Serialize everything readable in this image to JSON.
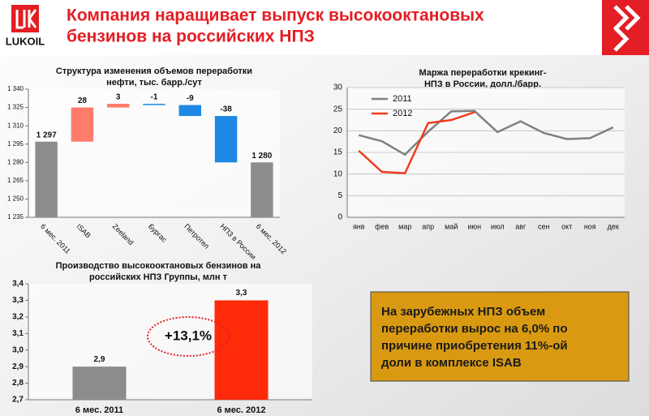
{
  "header": {
    "title": [
      "Компания наращивает выпуск высокооктановых",
      "бензинов на российских НПЗ"
    ],
    "logo": "LUKOIL"
  },
  "note": [
    "На зарубежных НПЗ объем",
    "переработки вырос на 6,0% по",
    "причине приобретения 11%-ой",
    "доли в комплексе ISAB"
  ],
  "chart_data": [
    {
      "type": "waterfall",
      "title": [
        "Структура изменения объемов переработки",
        "нефти, тыс. барр./сут"
      ],
      "categories": [
        "6 мес. 2011",
        "ISAB",
        "Zeeland",
        "Бургас",
        "Петротел",
        "НПЗ в России",
        "6 мес. 2012"
      ],
      "values": [
        1297,
        28,
        3,
        -1,
        -9,
        -38,
        1280
      ],
      "value_labels": [
        "1 297",
        "28",
        "3",
        "-1",
        "-9",
        "-38",
        "1 280"
      ],
      "total_color": "#8c8c8c",
      "increase_color": "#ff7b6b",
      "decrease_color": "#1e88e5",
      "ylim": [
        1235,
        1340
      ],
      "yticks": [
        {
          "value": 1235,
          "label": "1 235"
        },
        {
          "value": 1250,
          "label": "1 250"
        },
        {
          "value": 1265,
          "label": "1 265"
        },
        {
          "value": 1280,
          "label": "1 280"
        },
        {
          "value": 1295,
          "label": "1 295"
        },
        {
          "value": 1310,
          "label": "1 310"
        },
        {
          "value": 1325,
          "label": "1 325"
        },
        {
          "value": 1340,
          "label": "1 340"
        }
      ]
    },
    {
      "type": "line",
      "title": [
        "Маржа переработки крекинг-",
        "НПЗ в России, долл./барр."
      ],
      "categories": [
        "янв",
        "фев",
        "мар",
        "апр",
        "май",
        "июн",
        "июл",
        "авг",
        "сен",
        "окт",
        "ноя",
        "дек"
      ],
      "series": [
        {
          "name": "2011",
          "color": "#808080",
          "values": [
            19,
            17.6,
            14.5,
            19.8,
            24.5,
            24.6,
            19.7,
            22.2,
            19.5,
            18.1,
            18.3,
            20.8
          ]
        },
        {
          "name": "2012",
          "color": "#f03c1e",
          "values": [
            15.4,
            10.5,
            10.2,
            21.8,
            22.5,
            24.3,
            null,
            null,
            null,
            null,
            null,
            null
          ]
        }
      ],
      "ylim": [
        0,
        30
      ],
      "yticks": [
        0,
        5,
        10,
        15,
        20,
        25,
        30
      ],
      "legend": "top-left"
    },
    {
      "type": "bar",
      "title": [
        "Производство высокооктановых бензинов на",
        "российских НПЗ Группы, млн т"
      ],
      "categories": [
        "6 мес. 2011",
        "6 мес. 2012"
      ],
      "values": [
        2.9,
        3.3
      ],
      "value_labels": [
        "2,9",
        "3,3"
      ],
      "colors": [
        "#8c8c8c",
        "#ff2a0a"
      ],
      "ylim": [
        2.7,
        3.4
      ],
      "yticks": [
        {
          "value": 2.7,
          "label": "2,7"
        },
        {
          "value": 2.8,
          "label": "2,8"
        },
        {
          "value": 2.9,
          "label": "2,9"
        },
        {
          "value": 3.0,
          "label": "3,0"
        },
        {
          "value": 3.1,
          "label": "3,1"
        },
        {
          "value": 3.2,
          "label": "3,2"
        },
        {
          "value": 3.3,
          "label": "3,3"
        },
        {
          "value": 3.4,
          "label": "3,4"
        }
      ],
      "annotation": "+13,1%"
    }
  ]
}
